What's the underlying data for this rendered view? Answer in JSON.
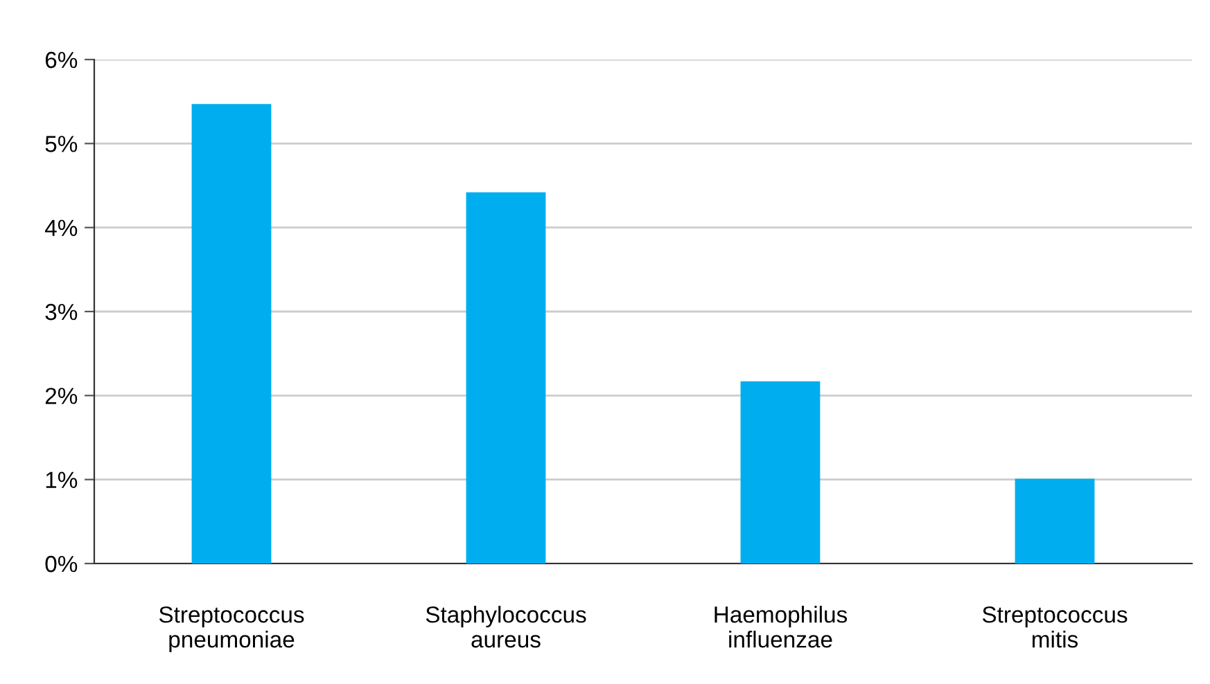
{
  "chart_data": {
    "type": "bar",
    "categories": [
      "Streptococcus\npneumoniae",
      "Staphylococcus\naureus",
      "Haemophilus\ninfluenzae",
      "Streptococcus\nmitis"
    ],
    "values": [
      5.47,
      4.42,
      2.17,
      1.01
    ],
    "color": "#00aeef",
    "ylim": [
      0,
      6
    ],
    "yticks": [
      {
        "value": 0,
        "label": "0%"
      },
      {
        "value": 1,
        "label": "1%"
      },
      {
        "value": 2,
        "label": "2%"
      },
      {
        "value": 3,
        "label": "3%"
      },
      {
        "value": 4,
        "label": "4%"
      },
      {
        "value": 5,
        "label": "5%"
      },
      {
        "value": 6,
        "label": "6%"
      }
    ],
    "grid": "y",
    "legend": false
  }
}
